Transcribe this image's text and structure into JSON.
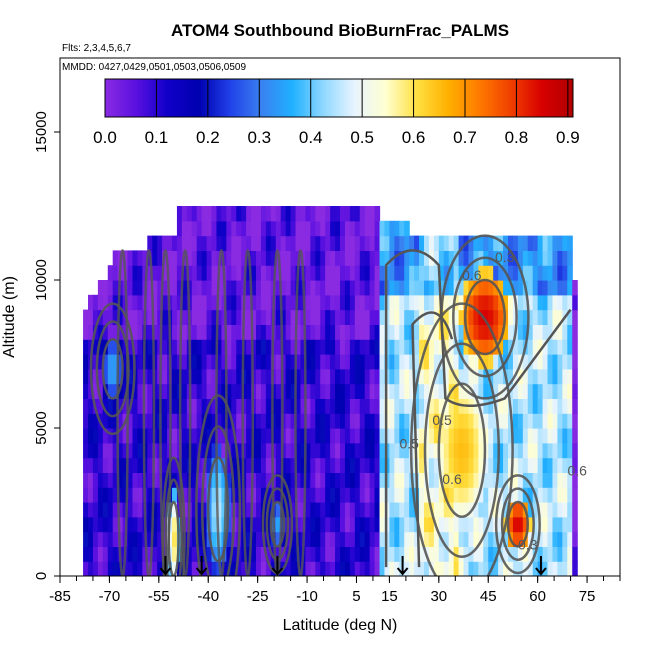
{
  "chart_data": {
    "type": "heatmap",
    "title": "ATOM4 Southbound BioBurnFrac_PALMS",
    "annotations": [
      "Flts: 2,3,4,5,6,7",
      "MMDD: 0427,0429,0501,0503,0506,0509"
    ],
    "xlabel": "Latitude (deg N)",
    "ylabel": "Altitude (m)",
    "xlim": [
      -85,
      85
    ],
    "ylim": [
      0,
      17500
    ],
    "x_ticks": [
      "-85",
      "-70",
      "-55",
      "-40",
      "-25",
      "-10",
      "5",
      "15",
      "30",
      "45",
      "60",
      "75"
    ],
    "x_tick_values": [
      -85,
      -70,
      -55,
      -40,
      -25,
      -10,
      5,
      15,
      30,
      45,
      60,
      75
    ],
    "y_ticks": [
      "0",
      "5000",
      "10000",
      "15000"
    ],
    "y_tick_values": [
      0,
      5000,
      10000,
      15000
    ],
    "colorbar": {
      "min": 0.0,
      "max": 0.91,
      "ticks": [
        "0.0",
        "0.1",
        "0.2",
        "0.3",
        "0.4",
        "0.5",
        "0.6",
        "0.7",
        "0.8",
        "0.9"
      ],
      "tick_values": [
        0,
        0.1,
        0.2,
        0.3,
        0.4,
        0.5,
        0.6,
        0.7,
        0.8,
        0.9
      ],
      "colors": [
        "#8a2be2",
        "#5a10e0",
        "#1000c8",
        "#0000b0",
        "#2040e8",
        "#3a80f0",
        "#20b0ff",
        "#8fd8ff",
        "#e8f4ff",
        "#ffffd0",
        "#ffe040",
        "#ffb000",
        "#ff7a00",
        "#f04000",
        "#d80000",
        "#b00000"
      ]
    },
    "contour_labels": [
      {
        "text": "0.3",
        "x": 50,
        "y": 10600
      },
      {
        "text": "0.6",
        "x": 40,
        "y": 10000
      },
      {
        "text": "0.5",
        "x": 31,
        "y": 5100
      },
      {
        "text": "0.6",
        "x": 34,
        "y": 3100
      },
      {
        "text": "0.3",
        "x": 57,
        "y": 900
      },
      {
        "text": "0.5",
        "x": 21,
        "y": 4300
      },
      {
        "text": "0.6",
        "x": 72,
        "y": 3400
      }
    ],
    "flight_markers_lat": [
      -53,
      -42,
      -19,
      19,
      61
    ],
    "data_regions": [
      {
        "lat": [
          -78,
          12
        ],
        "alt": [
          0,
          11500
        ],
        "value": 0.1
      },
      {
        "lat": [
          12,
          34
        ],
        "alt": [
          0,
          11000
        ],
        "value": 0.45
      },
      {
        "lat": [
          34,
          70
        ],
        "alt": [
          0,
          11000
        ],
        "value": 0.45
      }
    ],
    "hotspots": [
      {
        "lat": [
          38,
          50
        ],
        "alt": [
          7500,
          10000
        ],
        "value": 0.85
      },
      {
        "lat": [
          30,
          44
        ],
        "alt": [
          2000,
          6500
        ],
        "value": 0.65
      },
      {
        "lat": [
          51,
          57
        ],
        "alt": [
          1000,
          2500
        ],
        "value": 0.85
      },
      {
        "lat": [
          -72,
          -66
        ],
        "alt": [
          6000,
          8000
        ],
        "value": 0.35
      },
      {
        "lat": [
          -40,
          -34
        ],
        "alt": [
          500,
          4000
        ],
        "value": 0.45
      },
      {
        "lat": [
          -21,
          -17
        ],
        "alt": [
          1000,
          2500
        ],
        "value": 0.35
      },
      {
        "lat": [
          -52,
          -49
        ],
        "alt": [
          0,
          2500
        ],
        "value": 0.6
      }
    ]
  }
}
